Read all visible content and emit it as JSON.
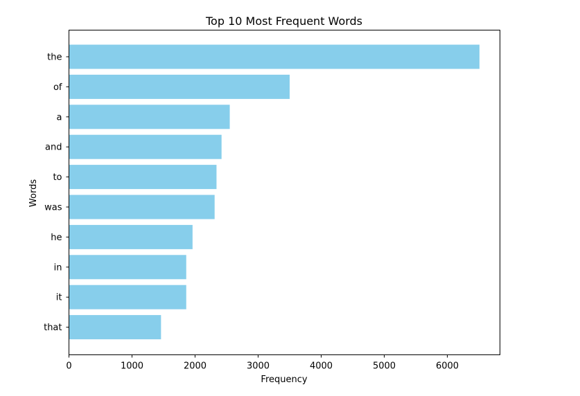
{
  "chart_data": {
    "type": "bar",
    "orientation": "horizontal",
    "title": "Top 10 Most Frequent Words",
    "xlabel": "Frequency",
    "ylabel": "Words",
    "categories": [
      "the",
      "of",
      "a",
      "and",
      "to",
      "was",
      "he",
      "in",
      "it",
      "that"
    ],
    "values": [
      6510,
      3500,
      2550,
      2420,
      2340,
      2310,
      1960,
      1860,
      1860,
      1460
    ],
    "xlim": [
      0,
      6835
    ],
    "xticks": [
      0,
      1000,
      2000,
      3000,
      4000,
      5000,
      6000
    ],
    "grid": false,
    "bar_color": "#87CEEB"
  }
}
